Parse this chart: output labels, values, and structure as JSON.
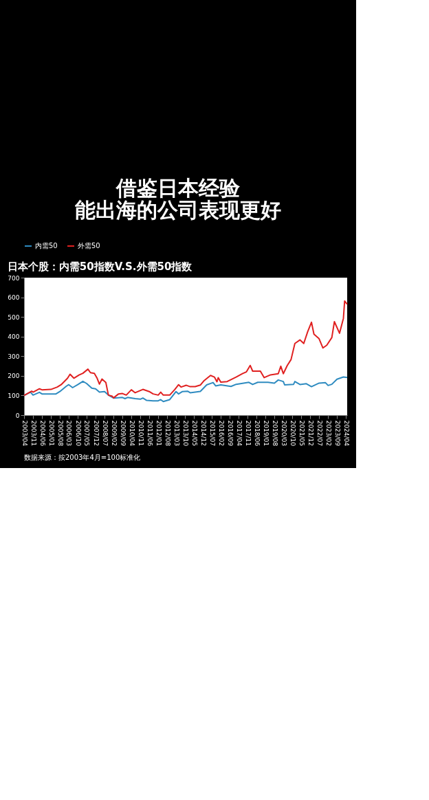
{
  "chart_data": {
    "type": "line",
    "title": [
      "借鉴日本经验",
      "能出海的公司表现更好"
    ],
    "subtitle": "日本个股：内需50指数V.S.外需50指数",
    "annotations": [
      "数据来源：按2003年4月=100标准化"
    ],
    "xlim": [
      "2003-04",
      "2024-05"
    ],
    "xticks": [
      {
        "value": "2003-04",
        "label": "2003/04"
      },
      {
        "value": "2003-11",
        "label": "2003/11"
      },
      {
        "value": "2004-06",
        "label": "2004/06"
      },
      {
        "value": "2005-01",
        "label": "2005/01"
      },
      {
        "value": "2005-08",
        "label": "2005/08"
      },
      {
        "value": "2006-03",
        "label": "2006/03"
      },
      {
        "value": "2006-10",
        "label": "2006/10"
      },
      {
        "value": "2007-05",
        "label": "2007/05"
      },
      {
        "value": "2007-12",
        "label": "2007/12"
      },
      {
        "value": "2008-07",
        "label": "2008/07"
      },
      {
        "value": "2009-02",
        "label": "2009/02"
      },
      {
        "value": "2009-09",
        "label": "2009/09"
      },
      {
        "value": "2010-04",
        "label": "2010/04"
      },
      {
        "value": "2010-11",
        "label": "2010/11"
      },
      {
        "value": "2011-06",
        "label": "2011/06"
      },
      {
        "value": "2012-01",
        "label": "2012/01"
      },
      {
        "value": "2012-08",
        "label": "2012/08"
      },
      {
        "value": "2013-03",
        "label": "2013/03"
      },
      {
        "value": "2013-10",
        "label": "2013/10"
      },
      {
        "value": "2014-05",
        "label": "2014/05"
      },
      {
        "value": "2014-12",
        "label": "2014/12"
      },
      {
        "value": "2015-07",
        "label": "2015/07"
      },
      {
        "value": "2016-02",
        "label": "2016/02"
      },
      {
        "value": "2016-09",
        "label": "2016/09"
      },
      {
        "value": "2017-04",
        "label": "2017/04"
      },
      {
        "value": "2017-11",
        "label": "2017/11"
      },
      {
        "value": "2018-06",
        "label": "2018/06"
      },
      {
        "value": "2019-01",
        "label": "2019/01"
      },
      {
        "value": "2019-08",
        "label": "2019/08"
      },
      {
        "value": "2020-03",
        "label": "2020/03"
      },
      {
        "value": "2020-10",
        "label": "2020/10"
      },
      {
        "value": "2021-05",
        "label": "2021/05"
      },
      {
        "value": "2021-12",
        "label": "2021/12"
      },
      {
        "value": "2022-07",
        "label": "2022/07"
      },
      {
        "value": "2023-02",
        "label": "2023/02"
      },
      {
        "value": "2023-09",
        "label": "2023/09"
      },
      {
        "value": "2024-04",
        "label": "2024/04"
      }
    ],
    "ylim": [
      0,
      700
    ],
    "yticks": [
      0,
      100,
      200,
      300,
      400,
      500,
      600,
      700
    ],
    "grid": false,
    "legend": "top",
    "marker": "none",
    "line_style": "solid",
    "series": [
      {
        "name": "内需50",
        "color": "#2e8bc0",
        "x": [
          "2003-04",
          "2003-09",
          "2003-11",
          "2004-04",
          "2004-06",
          "2005-01",
          "2005-05",
          "2005-08",
          "2006-01",
          "2006-03",
          "2006-06",
          "2006-10",
          "2007-02",
          "2007-05",
          "2007-09",
          "2007-12",
          "2008-03",
          "2008-07",
          "2008-10",
          "2009-02",
          "2009-09",
          "2009-11",
          "2010-01",
          "2010-07",
          "2010-11",
          "2011-01",
          "2011-04",
          "2011-09",
          "2012-01",
          "2012-03",
          "2012-05",
          "2012-10",
          "2013-03",
          "2013-05",
          "2013-08",
          "2013-12",
          "2014-02",
          "2014-10",
          "2015-03",
          "2015-08",
          "2015-10",
          "2016-02",
          "2016-10",
          "2017-02",
          "2017-12",
          "2018-03",
          "2018-07",
          "2019-03",
          "2019-08",
          "2019-11",
          "2020-03",
          "2020-04",
          "2020-11",
          "2020-12",
          "2021-04",
          "2021-09",
          "2022-01",
          "2022-07",
          "2022-12",
          "2023-02",
          "2023-05",
          "2023-09",
          "2024-02",
          "2024-05"
        ],
        "values": [
          100,
          117,
          102,
          116,
          108,
          108,
          108,
          120,
          147,
          155,
          140,
          155,
          172,
          161,
          137,
          134,
          117,
          120,
          102,
          87,
          90,
          84,
          90,
          84,
          81,
          87,
          75,
          73,
          73,
          79,
          69,
          79,
          120,
          108,
          120,
          122,
          114,
          121,
          154,
          166,
          149,
          154,
          146,
          157,
          167,
          156,
          167,
          167,
          163,
          179,
          171,
          154,
          157,
          171,
          156,
          160,
          145,
          163,
          165,
          151,
          157,
          183,
          194,
          192
        ]
      },
      {
        "name": "外需50",
        "color": "#e02020",
        "x": [
          "2003-04",
          "2003-10",
          "2003-11",
          "2004-04",
          "2004-06",
          "2005-01",
          "2005-06",
          "2005-09",
          "2006-02",
          "2006-04",
          "2006-07",
          "2006-11",
          "2007-02",
          "2007-06",
          "2007-08",
          "2007-11",
          "2008-01",
          "2008-03",
          "2008-05",
          "2008-08",
          "2008-10",
          "2009-01",
          "2009-02",
          "2009-06",
          "2009-09",
          "2009-12",
          "2010-04",
          "2010-07",
          "2011-01",
          "2011-06",
          "2011-09",
          "2012-01",
          "2012-03",
          "2012-05",
          "2012-10",
          "2013-02",
          "2013-05",
          "2013-07",
          "2013-11",
          "2014-02",
          "2014-06",
          "2014-10",
          "2015-01",
          "2015-06",
          "2015-09",
          "2015-11",
          "2015-12",
          "2016-02",
          "2016-07",
          "2017-02",
          "2017-07",
          "2017-10",
          "2018-01",
          "2018-03",
          "2018-09",
          "2018-12",
          "2019-05",
          "2019-11",
          "2020-01",
          "2020-03",
          "2020-06",
          "2020-09",
          "2020-12",
          "2021-04",
          "2021-07",
          "2021-10",
          "2022-01",
          "2022-03",
          "2022-07",
          "2022-10",
          "2023-01",
          "2023-05",
          "2023-07",
          "2023-11",
          "2024-02",
          "2024-03",
          "2024-05"
        ],
        "values": [
          100,
          122,
          117,
          134,
          129,
          131,
          143,
          155,
          188,
          208,
          188,
          204,
          213,
          234,
          216,
          213,
          190,
          158,
          184,
          166,
          102,
          96,
          88,
          108,
          110,
          102,
          129,
          114,
          131,
          120,
          108,
          102,
          117,
          102,
          102,
          131,
          155,
          143,
          152,
          145,
          145,
          153,
          176,
          202,
          194,
          170,
          191,
          168,
          171,
          194,
          211,
          220,
          253,
          224,
          224,
          191,
          205,
          211,
          249,
          211,
          252,
          283,
          365,
          383,
          365,
          424,
          473,
          412,
          389,
          342,
          356,
          395,
          476,
          417,
          493,
          581,
          565
        ]
      }
    ]
  }
}
